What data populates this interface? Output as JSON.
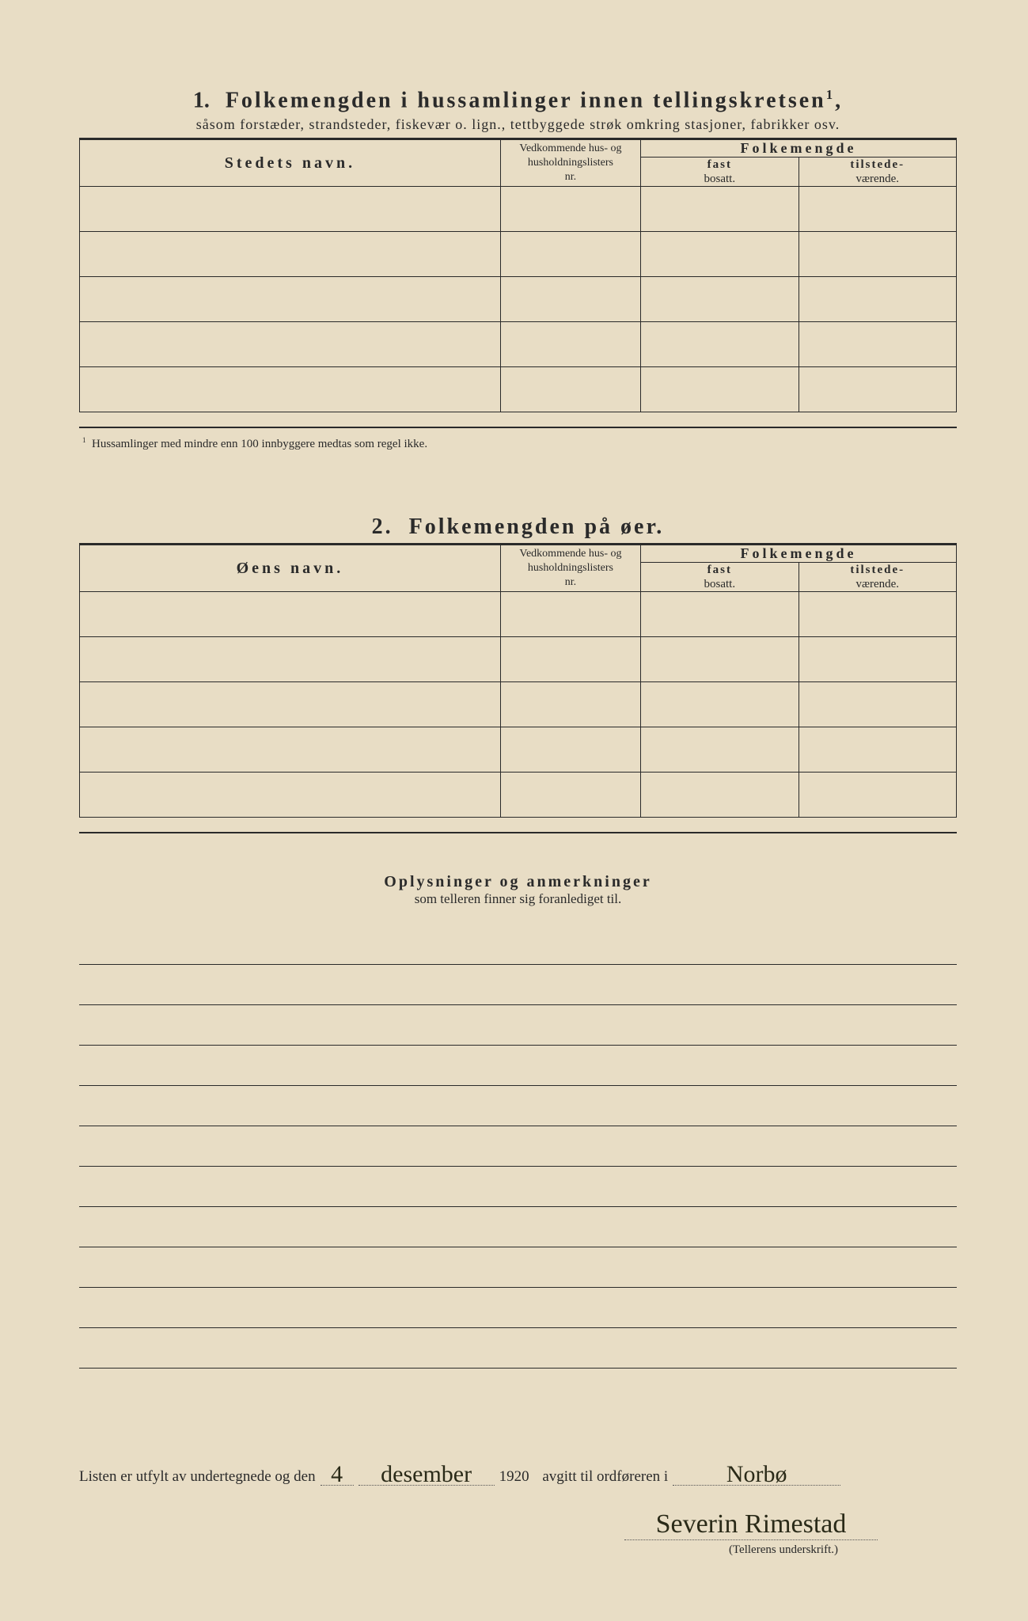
{
  "section1": {
    "number": "1.",
    "title": "Folkemengden i hussamlinger innen tellingskretsen",
    "title_sup": "1",
    "subtitle": "såsom forstæder, strandsteder, fiskevær o. lign., tettbyggede strøk omkring stasjoner, fabrikker osv.",
    "col_name": "Stedets navn.",
    "col_nr_l1": "Vedkommende hus- og",
    "col_nr_l2": "husholdningslisters",
    "col_nr_l3": "nr.",
    "col_pop": "Folkemengde",
    "col_fast_b": "fast",
    "col_fast": "bosatt.",
    "col_til_b": "tilstede-",
    "col_til": "værende.",
    "footnote_num": "1",
    "footnote": "Hussamlinger med mindre enn 100 innbyggere medtas som regel ikke.",
    "row_count": 5
  },
  "section2": {
    "number": "2.",
    "title": "Folkemengden på øer.",
    "col_name": "Øens navn.",
    "col_nr_l1": "Vedkommende hus- og",
    "col_nr_l2": "husholdningslisters",
    "col_nr_l3": "nr.",
    "col_pop": "Folkemengde",
    "col_fast_b": "fast",
    "col_fast": "bosatt.",
    "col_til_b": "tilstede-",
    "col_til": "værende.",
    "row_count": 5
  },
  "remarks": {
    "title": "Oplysninger og anmerkninger",
    "subtitle": "som telleren finner sig foranlediget til.",
    "line_count": 11
  },
  "signature": {
    "pre": "Listen er utfylt av undertegnede og den",
    "day": "4",
    "month": "desember",
    "year": "1920",
    "mid": "avgitt til ordføreren i",
    "place": "Norbø",
    "name": "Severin Rimestad",
    "caption": "(Tellerens underskrift.)"
  },
  "colors": {
    "paper": "#e8ddc5",
    "ink": "#2a2a2a",
    "handwriting": "#2a2a18"
  }
}
